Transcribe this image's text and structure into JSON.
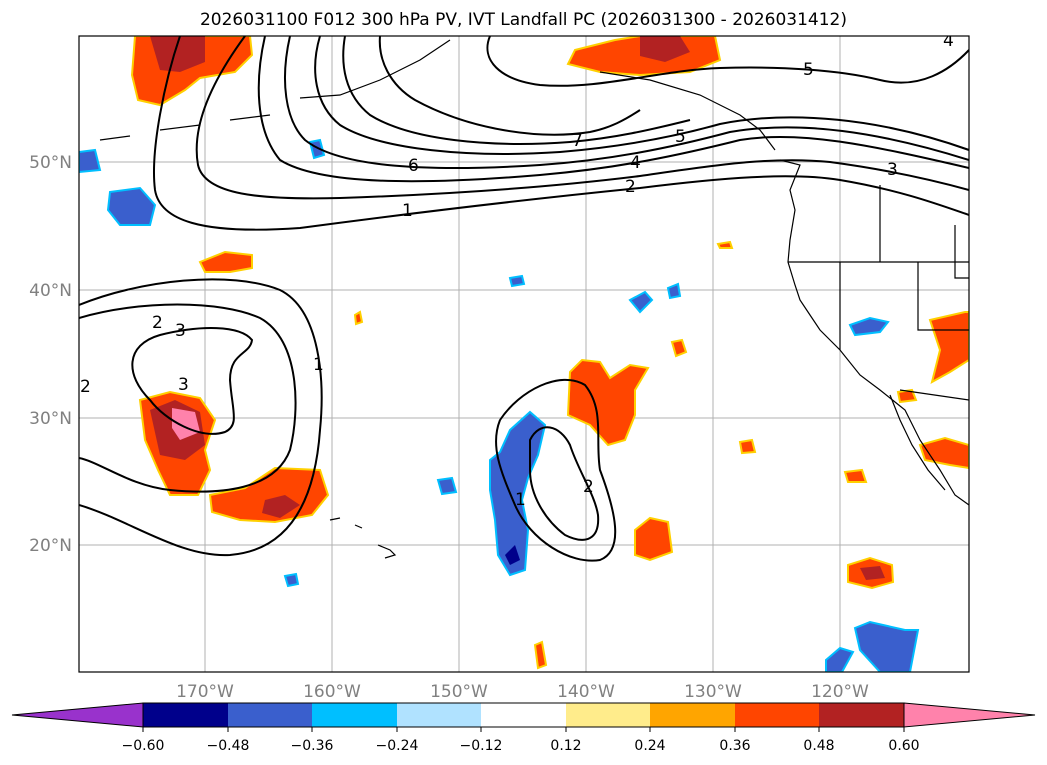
{
  "title": "2026031100 F012 300 hPa PV, IVT Landfall PC (2026031300 - 2026031412)",
  "map": {
    "lat_labels": [
      "50°N",
      "40°N",
      "30°N",
      "20°N"
    ],
    "lon_labels": [
      "170°W",
      "160°W",
      "150°W",
      "140°W",
      "130°W",
      "120°W"
    ],
    "contour_labels": [
      "1",
      "2",
      "3",
      "4",
      "5",
      "6",
      "7",
      "5",
      "4",
      "3",
      "2",
      "3",
      "1",
      "1",
      "2",
      "2"
    ]
  },
  "colorbar": {
    "ticks": [
      "−0.60",
      "−0.48",
      "−0.36",
      "−0.24",
      "−0.12",
      "0.12",
      "0.24",
      "0.36",
      "0.48",
      "0.60"
    ],
    "colors": [
      "#9932cc",
      "#00008b",
      "#3a5fcd",
      "#00bfff",
      "#b0e2ff",
      "#ffffff",
      "#ffec8b",
      "#ffa500",
      "#ff4500",
      "#b22222",
      "#ff82ab"
    ]
  },
  "colors": {
    "grid": "#b0b0b0",
    "contour": "#000000",
    "tick_text": "#808080"
  }
}
